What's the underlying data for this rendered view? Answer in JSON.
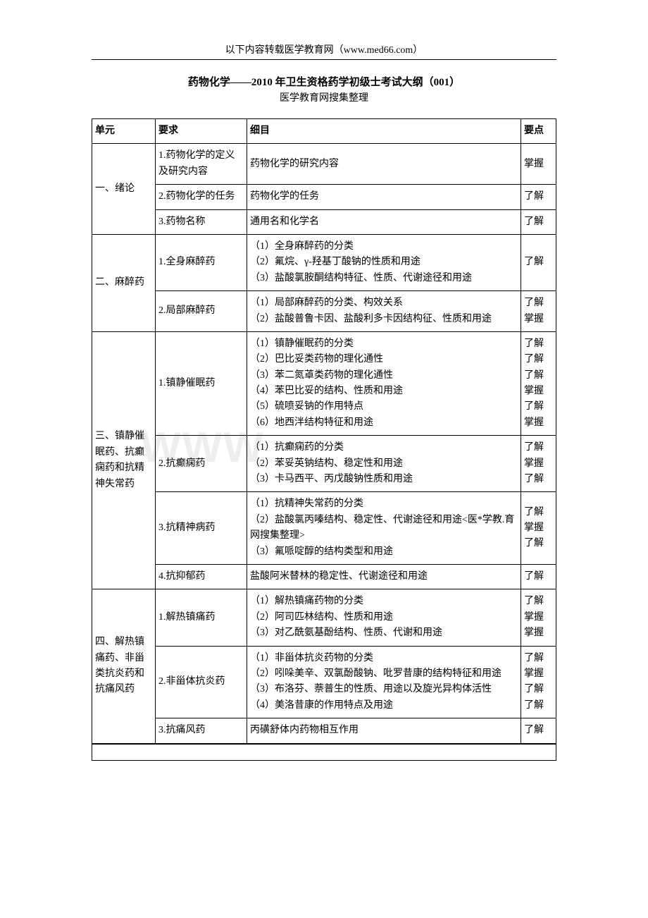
{
  "header": "以下内容转载医学教育网（www.med66.com）",
  "title": "药物化学——2010 年卫生资格药学初级士考试大纲（001）",
  "subtitle": "医学教育网搜集整理",
  "watermark": "WWW",
  "thead": {
    "c1": "单元",
    "c2": "要求",
    "c3": "细目",
    "c4": "要点"
  },
  "rows": [
    {
      "c1": "一、绪论",
      "c1rs": 3,
      "c2": "1.药物化学的定义及研究内容",
      "c3": "药物化学的研究内容",
      "c4": "掌握"
    },
    {
      "c2": "2.药物化学的任务",
      "c3": "药物化学的任务",
      "c4": "了解"
    },
    {
      "c2": "3.药物名称",
      "c3": "通用名和化学名",
      "c4": "了解"
    },
    {
      "c1": "二、麻醉药",
      "c1rs": 2,
      "c2": "1.全身麻醉药",
      "c3": "（1）全身麻醉药的分类\n（2）氟烷、γ-羟基丁酸钠的性质和用途\n（3）盐酸氯胺酮结构特征、性质、代谢途径和用途",
      "c4": "了解"
    },
    {
      "c2": "2.局部麻醉药",
      "c3": "（1）局部麻醉药的分类、构效关系\n（2）盐酸普鲁卡因、盐酸利多卡因结构征、性质和用途",
      "c4": "了解\n掌握"
    },
    {
      "c1": "三、镇静催眠药、抗癫痫药和抗精神失常药",
      "c1rs": 4,
      "c2": "1.镇静催眠药",
      "c3": "（1）镇静催眠药的分类\n（2）巴比妥类药物的理化通性\n（3）苯二氮䓬类药物的理化通性\n（4）苯巴比妥的结构、性质和用途\n（5）硫喷妥钠的作用特点\n（6）地西泮结构特征和用途",
      "c4": "了解\n了解\n了解\n掌握\n了解\n掌握"
    },
    {
      "c2": "2.抗癫痫药",
      "c3": "（1）抗癫痫药的分类\n（2）苯妥英钠结构、稳定性和用途\n（3）卡马西平、丙戊酸钠性质和用途",
      "c4": "了解\n掌握\n了解"
    },
    {
      "c2": "3.抗精神病药",
      "c3": "（1）抗精神失常药的分类\n（2）盐酸氯丙嗪结构、稳定性、代谢途径和用途<医*学教.育网搜集整理>\n（3）氟哌啶醇的结构类型和用途",
      "c4": "了解\n掌握\n了解"
    },
    {
      "c2": "4.抗抑郁药",
      "c3": "盐酸阿米替林的稳定性、代谢途径和用途",
      "c4": "了解"
    },
    {
      "c1": "四、解热镇痛药、非甾类抗炎药和抗痛风药",
      "c1rs": 3,
      "c2": "1.解热镇痛药",
      "c3": "（1）解热镇痛药物的分类\n（2）阿司匹林结构、性质和用途\n（3）对乙酰氨基酚结构、性质、代谢和用途",
      "c4": "了解\n掌握\n掌握"
    },
    {
      "c2": "2.非甾体抗炎药",
      "c3": "（1）非甾体抗炎药物的分类\n（2）吲哚美辛、双氯酚酸钠、吡罗昔康的结构特征和用途\n（3）布洛芬、萘普生的性质、用途以及旋光异构体活性\n（4）美洛昔康的作用特点及用途",
      "c4": "了解\n掌握\n了解\n了解"
    },
    {
      "c2": "3.抗痛风药",
      "c3": "丙磺舒体内药物相互作用",
      "c4": "了解"
    }
  ]
}
